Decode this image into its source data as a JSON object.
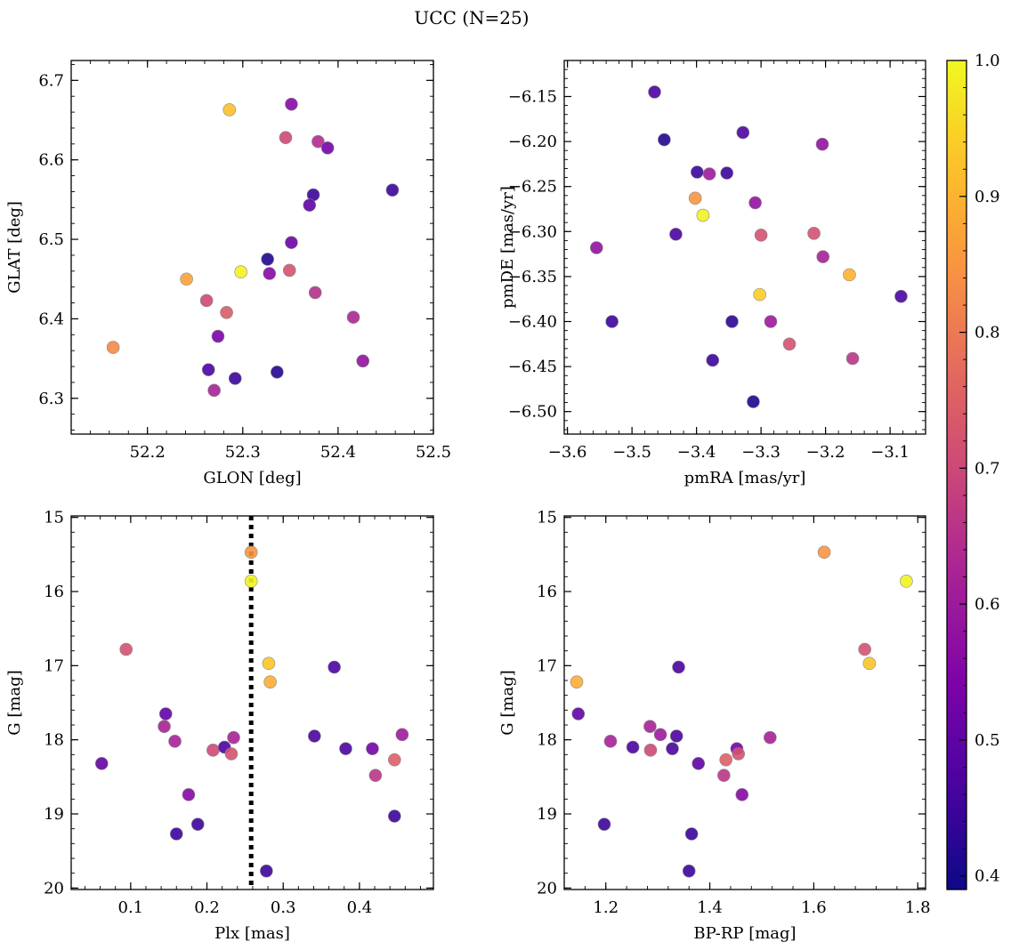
{
  "figure": {
    "title": "UCC (N=25)"
  },
  "colorbar": {
    "range": [
      0.39,
      1.0
    ],
    "ticks": [
      0.4,
      0.5,
      0.6,
      0.7,
      0.8,
      0.9,
      1.0
    ],
    "tick_labels": [
      "0.4",
      "0.5",
      "0.6",
      "0.7",
      "0.8",
      "0.9",
      "1.0"
    ],
    "colormap": "plasma"
  },
  "chart_data": [
    {
      "type": "scatter",
      "name": "glon-glat",
      "xlabel": "GLON [deg]",
      "ylabel": "GLAT [deg]",
      "xlim": [
        52.12,
        52.5
      ],
      "ylim": [
        6.255,
        6.725
      ],
      "xticks": [
        52.2,
        52.3,
        52.4,
        52.5
      ],
      "xtick_labels": [
        "52.2",
        "52.3",
        "52.4",
        "52.5"
      ],
      "yticks": [
        6.3,
        6.4,
        6.5,
        6.6,
        6.7
      ],
      "ytick_labels": [
        "6.3",
        "6.4",
        "6.5",
        "6.6",
        "6.7"
      ],
      "invert_y": false,
      "points": [
        {
          "x": 52.286,
          "y": 6.663,
          "c": 0.92
        },
        {
          "x": 52.351,
          "y": 6.67,
          "c": 0.56
        },
        {
          "x": 52.345,
          "y": 6.628,
          "c": 0.7
        },
        {
          "x": 52.379,
          "y": 6.623,
          "c": 0.64
        },
        {
          "x": 52.389,
          "y": 6.615,
          "c": 0.53
        },
        {
          "x": 52.457,
          "y": 6.562,
          "c": 0.45
        },
        {
          "x": 52.374,
          "y": 6.556,
          "c": 0.45
        },
        {
          "x": 52.37,
          "y": 6.543,
          "c": 0.5
        },
        {
          "x": 52.351,
          "y": 6.496,
          "c": 0.52
        },
        {
          "x": 52.326,
          "y": 6.475,
          "c": 0.42
        },
        {
          "x": 52.298,
          "y": 6.459,
          "c": 0.99
        },
        {
          "x": 52.349,
          "y": 6.461,
          "c": 0.72
        },
        {
          "x": 52.328,
          "y": 6.457,
          "c": 0.56
        },
        {
          "x": 52.241,
          "y": 6.45,
          "c": 0.87
        },
        {
          "x": 52.376,
          "y": 6.433,
          "c": 0.65
        },
        {
          "x": 52.262,
          "y": 6.423,
          "c": 0.7
        },
        {
          "x": 52.283,
          "y": 6.408,
          "c": 0.74
        },
        {
          "x": 52.416,
          "y": 6.402,
          "c": 0.63
        },
        {
          "x": 52.274,
          "y": 6.378,
          "c": 0.54
        },
        {
          "x": 52.164,
          "y": 6.364,
          "c": 0.83
        },
        {
          "x": 52.426,
          "y": 6.347,
          "c": 0.58
        },
        {
          "x": 52.264,
          "y": 6.336,
          "c": 0.47
        },
        {
          "x": 52.336,
          "y": 6.333,
          "c": 0.42
        },
        {
          "x": 52.292,
          "y": 6.325,
          "c": 0.45
        },
        {
          "x": 52.27,
          "y": 6.31,
          "c": 0.62
        }
      ]
    },
    {
      "type": "scatter",
      "name": "pmra-pmde",
      "xlabel": "pmRA [mas/yr]",
      "ylabel": "pmDE [mas/yr]",
      "xlim": [
        -3.605,
        -3.045
      ],
      "ylim": [
        -6.525,
        -6.11
      ],
      "xticks": [
        -3.6,
        -3.5,
        -3.4,
        -3.3,
        -3.2,
        -3.1
      ],
      "xtick_labels": [
        "−3.6",
        "−3.5",
        "−3.4",
        "−3.3",
        "−3.2",
        "−3.1"
      ],
      "yticks": [
        -6.5,
        -6.45,
        -6.4,
        -6.35,
        -6.3,
        -6.25,
        -6.2,
        -6.15
      ],
      "ytick_labels": [
        "−6.50",
        "−6.45",
        "−6.40",
        "−6.35",
        "−6.30",
        "−6.25",
        "−6.20",
        "−6.15"
      ],
      "invert_y": false,
      "points": [
        {
          "x": -3.465,
          "y": -6.145,
          "c": 0.47
        },
        {
          "x": -3.45,
          "y": -6.198,
          "c": 0.42
        },
        {
          "x": -3.328,
          "y": -6.19,
          "c": 0.47
        },
        {
          "x": -3.205,
          "y": -6.203,
          "c": 0.58
        },
        {
          "x": -3.399,
          "y": -6.234,
          "c": 0.45
        },
        {
          "x": -3.38,
          "y": -6.236,
          "c": 0.6
        },
        {
          "x": -3.353,
          "y": -6.235,
          "c": 0.45
        },
        {
          "x": -3.402,
          "y": -6.263,
          "c": 0.85
        },
        {
          "x": -3.309,
          "y": -6.268,
          "c": 0.58
        },
        {
          "x": -3.39,
          "y": -6.282,
          "c": 0.99
        },
        {
          "x": -3.432,
          "y": -6.303,
          "c": 0.47
        },
        {
          "x": -3.3,
          "y": -6.304,
          "c": 0.72
        },
        {
          "x": -3.218,
          "y": -6.302,
          "c": 0.72
        },
        {
          "x": -3.555,
          "y": -6.318,
          "c": 0.58
        },
        {
          "x": -3.204,
          "y": -6.328,
          "c": 0.62
        },
        {
          "x": -3.163,
          "y": -6.348,
          "c": 0.9
        },
        {
          "x": -3.302,
          "y": -6.37,
          "c": 0.94
        },
        {
          "x": -3.083,
          "y": -6.372,
          "c": 0.47
        },
        {
          "x": -3.531,
          "y": -6.4,
          "c": 0.45
        },
        {
          "x": -3.345,
          "y": -6.4,
          "c": 0.43
        },
        {
          "x": -3.285,
          "y": -6.4,
          "c": 0.6
        },
        {
          "x": -3.256,
          "y": -6.425,
          "c": 0.72
        },
        {
          "x": -3.375,
          "y": -6.443,
          "c": 0.45
        },
        {
          "x": -3.158,
          "y": -6.441,
          "c": 0.66
        },
        {
          "x": -3.312,
          "y": -6.489,
          "c": 0.41
        }
      ]
    },
    {
      "type": "scatter",
      "name": "plx-g",
      "xlabel": "Plx [mas]",
      "ylabel": "G [mag]",
      "xlim": [
        0.022,
        0.497
      ],
      "ylim": [
        20.02,
        14.98
      ],
      "xticks": [
        0.1,
        0.2,
        0.3,
        0.4
      ],
      "xtick_labels": [
        "0.1",
        "0.2",
        "0.3",
        "0.4"
      ],
      "yticks": [
        15,
        16,
        17,
        18,
        19,
        20
      ],
      "ytick_labels": [
        "15",
        "16",
        "17",
        "18",
        "19",
        "20"
      ],
      "invert_y": true,
      "vline": 0.258,
      "points": [
        {
          "x": 0.258,
          "y": 15.47,
          "c": 0.85
        },
        {
          "x": 0.258,
          "y": 15.86,
          "c": 0.99
        },
        {
          "x": 0.094,
          "y": 16.78,
          "c": 0.72
        },
        {
          "x": 0.367,
          "y": 17.02,
          "c": 0.47
        },
        {
          "x": 0.281,
          "y": 16.97,
          "c": 0.93
        },
        {
          "x": 0.283,
          "y": 17.22,
          "c": 0.89
        },
        {
          "x": 0.146,
          "y": 17.65,
          "c": 0.5
        },
        {
          "x": 0.144,
          "y": 17.82,
          "c": 0.62
        },
        {
          "x": 0.158,
          "y": 18.02,
          "c": 0.62
        },
        {
          "x": 0.341,
          "y": 17.95,
          "c": 0.47
        },
        {
          "x": 0.456,
          "y": 17.93,
          "c": 0.6
        },
        {
          "x": 0.235,
          "y": 17.97,
          "c": 0.62
        },
        {
          "x": 0.208,
          "y": 18.14,
          "c": 0.7
        },
        {
          "x": 0.223,
          "y": 18.1,
          "c": 0.47
        },
        {
          "x": 0.232,
          "y": 18.19,
          "c": 0.72
        },
        {
          "x": 0.382,
          "y": 18.12,
          "c": 0.47
        },
        {
          "x": 0.417,
          "y": 18.12,
          "c": 0.53
        },
        {
          "x": 0.446,
          "y": 18.27,
          "c": 0.75
        },
        {
          "x": 0.062,
          "y": 18.32,
          "c": 0.5
        },
        {
          "x": 0.421,
          "y": 18.48,
          "c": 0.66
        },
        {
          "x": 0.176,
          "y": 18.74,
          "c": 0.56
        },
        {
          "x": 0.446,
          "y": 19.03,
          "c": 0.45
        },
        {
          "x": 0.188,
          "y": 19.14,
          "c": 0.45
        },
        {
          "x": 0.16,
          "y": 19.27,
          "c": 0.45
        },
        {
          "x": 0.278,
          "y": 19.77,
          "c": 0.45
        }
      ]
    },
    {
      "type": "scatter",
      "name": "bprp-g",
      "xlabel": "BP-RP [mag]",
      "ylabel": "G [mag]",
      "xlim": [
        1.12,
        1.815
      ],
      "ylim": [
        20.02,
        14.98
      ],
      "xticks": [
        1.2,
        1.4,
        1.6,
        1.8
      ],
      "xtick_labels": [
        "1.2",
        "1.4",
        "1.6",
        "1.8"
      ],
      "yticks": [
        15,
        16,
        17,
        18,
        19,
        20
      ],
      "ytick_labels": [
        "15",
        "16",
        "17",
        "18",
        "19",
        "20"
      ],
      "invert_y": true,
      "points": [
        {
          "x": 1.62,
          "y": 15.47,
          "c": 0.85
        },
        {
          "x": 1.778,
          "y": 15.86,
          "c": 0.99
        },
        {
          "x": 1.698,
          "y": 16.78,
          "c": 0.72
        },
        {
          "x": 1.707,
          "y": 16.97,
          "c": 0.93
        },
        {
          "x": 1.34,
          "y": 17.02,
          "c": 0.47
        },
        {
          "x": 1.144,
          "y": 17.22,
          "c": 0.89
        },
        {
          "x": 1.147,
          "y": 17.65,
          "c": 0.5
        },
        {
          "x": 1.285,
          "y": 17.82,
          "c": 0.62
        },
        {
          "x": 1.305,
          "y": 17.93,
          "c": 0.6
        },
        {
          "x": 1.336,
          "y": 17.95,
          "c": 0.47
        },
        {
          "x": 1.516,
          "y": 17.97,
          "c": 0.62
        },
        {
          "x": 1.209,
          "y": 18.02,
          "c": 0.62
        },
        {
          "x": 1.252,
          "y": 18.1,
          "c": 0.47
        },
        {
          "x": 1.328,
          "y": 18.12,
          "c": 0.47
        },
        {
          "x": 1.452,
          "y": 18.12,
          "c": 0.53
        },
        {
          "x": 1.286,
          "y": 18.14,
          "c": 0.7
        },
        {
          "x": 1.455,
          "y": 18.19,
          "c": 0.72
        },
        {
          "x": 1.431,
          "y": 18.27,
          "c": 0.75
        },
        {
          "x": 1.378,
          "y": 18.32,
          "c": 0.5
        },
        {
          "x": 1.427,
          "y": 18.48,
          "c": 0.66
        },
        {
          "x": 1.462,
          "y": 18.74,
          "c": 0.56
        },
        {
          "x": 1.197,
          "y": 19.14,
          "c": 0.45
        },
        {
          "x": 1.365,
          "y": 19.27,
          "c": 0.45
        },
        {
          "x": 1.36,
          "y": 19.77,
          "c": 0.45
        }
      ]
    }
  ]
}
